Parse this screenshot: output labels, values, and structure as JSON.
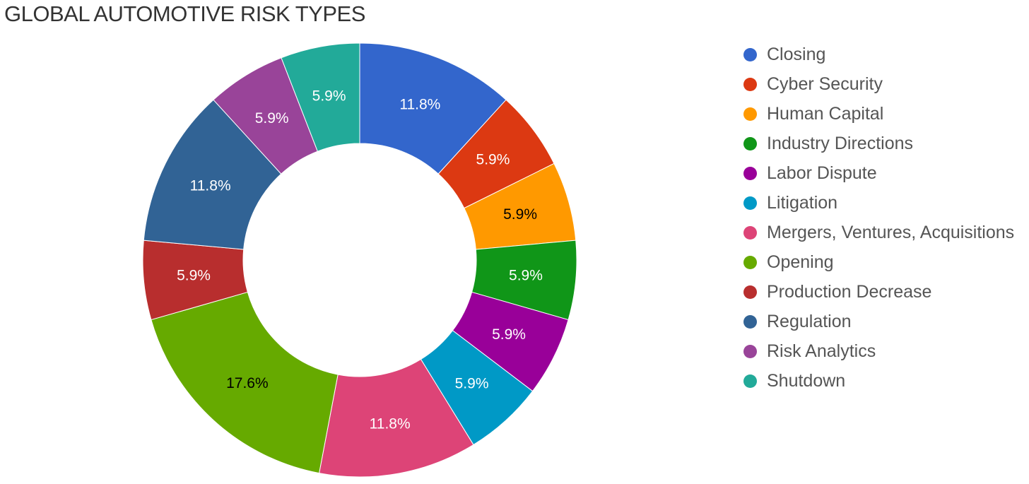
{
  "chart_data": {
    "type": "pie",
    "title": "GLOBAL AUTOMOTIVE RISK TYPES",
    "donut": true,
    "legend_position": "right",
    "slices": [
      {
        "label": "Closing",
        "value": 11.8,
        "value_label": "11.8%",
        "color": "#3366cc",
        "label_color": "#ffffff"
      },
      {
        "label": "Cyber Security",
        "value": 5.9,
        "value_label": "5.9%",
        "color": "#dc3912",
        "label_color": "#ffffff"
      },
      {
        "label": "Human Capital",
        "value": 5.9,
        "value_label": "5.9%",
        "color": "#ff9900",
        "label_color": "#000000"
      },
      {
        "label": "Industry Directions",
        "value": 5.9,
        "value_label": "5.9%",
        "color": "#109618",
        "label_color": "#ffffff"
      },
      {
        "label": "Labor Dispute",
        "value": 5.9,
        "value_label": "5.9%",
        "color": "#990099",
        "label_color": "#ffffff"
      },
      {
        "label": "Litigation",
        "value": 5.9,
        "value_label": "5.9%",
        "color": "#0099c6",
        "label_color": "#ffffff"
      },
      {
        "label": "Mergers, Ventures, Acquisitions",
        "value": 11.8,
        "value_label": "11.8%",
        "color": "#dd4477",
        "label_color": "#ffffff"
      },
      {
        "label": "Opening",
        "value": 17.6,
        "value_label": "17.6%",
        "color": "#66aa00",
        "label_color": "#000000"
      },
      {
        "label": "Production Decrease",
        "value": 5.9,
        "value_label": "5.9%",
        "color": "#b82e2e",
        "label_color": "#ffffff"
      },
      {
        "label": "Regulation",
        "value": 11.8,
        "value_label": "11.8%",
        "color": "#316395",
        "label_color": "#ffffff"
      },
      {
        "label": "Risk Analytics",
        "value": 5.9,
        "value_label": "5.9%",
        "color": "#994499",
        "label_color": "#ffffff"
      },
      {
        "label": "Shutdown",
        "value": 5.9,
        "value_label": "5.9%",
        "color": "#22aa99",
        "label_color": "#ffffff"
      }
    ]
  }
}
